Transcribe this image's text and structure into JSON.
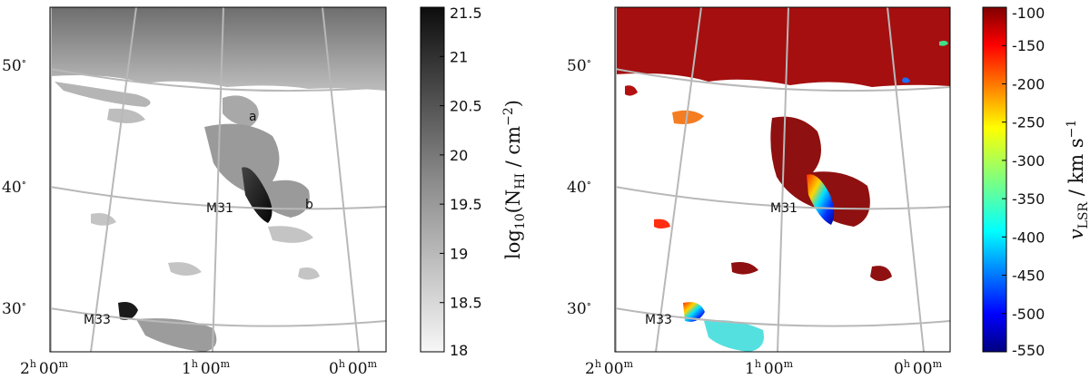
{
  "chart_data": [
    {
      "type": "heatmap",
      "panel": "left",
      "colormap": "greys",
      "colors": {
        "low": "#f2f2f2",
        "high": "#111111",
        "grid": "#b8b8b8"
      },
      "colorbar": {
        "label_base": "log",
        "label_sub": "10",
        "label_var": "(N",
        "label_var_sub": "HI",
        "label_unit": " / cm",
        "label_unit_sup": "−2",
        "label_close": ")",
        "ticks": [
          "21.5",
          "21",
          "20.5",
          "20",
          "19.5",
          "19",
          "18.5",
          "18"
        ],
        "range": [
          18,
          21.5
        ]
      },
      "yticks": [
        {
          "deg": "50",
          "sup": "∘"
        },
        {
          "deg": "40",
          "sup": "∘"
        },
        {
          "deg": "30",
          "sup": "∘"
        }
      ],
      "xticks": [
        {
          "h": "2",
          "hs": "h",
          "m": "00",
          "ms": "m"
        },
        {
          "h": "1",
          "hs": "h",
          "m": "00",
          "ms": "m"
        },
        {
          "h": "0",
          "hs": "h",
          "m": "00",
          "ms": "m"
        }
      ],
      "labels": [
        "a",
        "b",
        "M31",
        "M33"
      ]
    },
    {
      "type": "heatmap",
      "panel": "right",
      "colormap": "jet",
      "colors": {
        "low": "#00007f",
        "high": "#7f0000",
        "grid": "#b8b8b8"
      },
      "colorbar": {
        "label_var": "v",
        "label_var_sub": "LSR",
        "label_unit": " / km s",
        "label_unit_sup": "−1",
        "ticks": [
          "-100",
          "-150",
          "-200",
          "-250",
          "-300",
          "-350",
          "-400",
          "-450",
          "-500",
          "-550"
        ],
        "range": [
          -550,
          -100
        ]
      },
      "yticks": [
        {
          "deg": "50",
          "sup": "∘"
        },
        {
          "deg": "40",
          "sup": "∘"
        },
        {
          "deg": "30",
          "sup": "∘"
        }
      ],
      "xticks": [
        {
          "h": "2",
          "hs": "h",
          "m": "00",
          "ms": "m"
        },
        {
          "h": "1",
          "hs": "h",
          "m": "00",
          "ms": "m"
        },
        {
          "h": "0",
          "hs": "h",
          "m": "00",
          "ms": "m"
        }
      ],
      "labels": [
        "M31",
        "M33"
      ]
    }
  ]
}
